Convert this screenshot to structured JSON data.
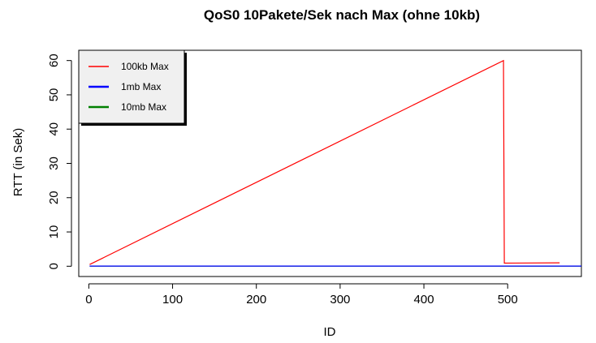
{
  "chart_data": {
    "type": "line",
    "title": "QoS0 10Pakete/Sek nach Max (ohne 10kb)",
    "xlabel": "ID",
    "ylabel": "RTT (in Sek)",
    "xlim": [
      -12,
      588
    ],
    "ylim": [
      -3,
      63
    ],
    "xticks": [
      0,
      100,
      200,
      300,
      400,
      500
    ],
    "yticks": [
      0,
      10,
      20,
      30,
      40,
      50,
      60
    ],
    "grid": false,
    "legend_position": "top-left",
    "series": [
      {
        "name": "100kb Max",
        "color": "#ff0000",
        "points": [
          [
            1,
            0.5
          ],
          [
            495,
            60
          ],
          [
            496,
            0.9
          ],
          [
            562,
            1.0
          ]
        ]
      },
      {
        "name": "1mb Max",
        "color": "#0000ff",
        "points": [
          [
            1,
            0.05
          ],
          [
            588,
            0.05
          ]
        ]
      },
      {
        "name": "10mb Max",
        "color": "#008000",
        "points": [
          [
            1,
            0.05
          ],
          [
            588,
            0.05
          ]
        ]
      }
    ]
  }
}
